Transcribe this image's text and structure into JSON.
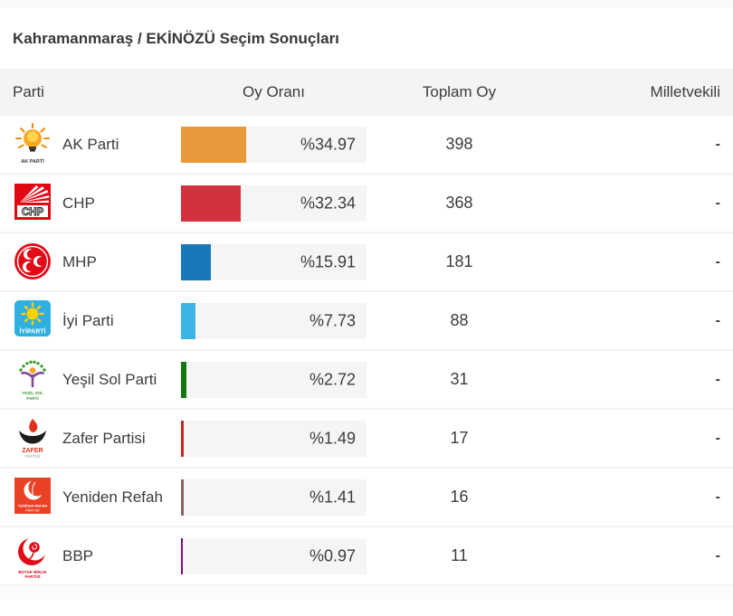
{
  "page": {
    "title": "Kahramanmaraş / EKİNÖZÜ Seçim Sonuçları"
  },
  "table": {
    "columns": {
      "party": "Parti",
      "rate": "Oy Oranı",
      "total": "Toplam Oy",
      "mps": "Milletvekili"
    },
    "rows": [
      {
        "party": "AK Parti",
        "rate": 34.97,
        "rate_label": "%34.97",
        "total": "398",
        "mps": "-",
        "bar_color": "#e8993c",
        "logo_caption": "AK PARTİ",
        "logo_caption2": ""
      },
      {
        "party": "CHP",
        "rate": 32.34,
        "rate_label": "%32.34",
        "total": "368",
        "mps": "-",
        "bar_color": "#d2323e",
        "logo_caption": "CHP",
        "logo_caption2": ""
      },
      {
        "party": "MHP",
        "rate": 15.91,
        "rate_label": "%15.91",
        "total": "181",
        "mps": "-",
        "bar_color": "#1878b8",
        "logo_caption": "",
        "logo_caption2": ""
      },
      {
        "party": "İyi Parti",
        "rate": 7.73,
        "rate_label": "%7.73",
        "total": "88",
        "mps": "-",
        "bar_color": "#3cb5e5",
        "logo_caption": "İYİPARTİ",
        "logo_caption2": ""
      },
      {
        "party": "Yeşil Sol Parti",
        "rate": 2.72,
        "rate_label": "%2.72",
        "total": "31",
        "mps": "-",
        "bar_color": "#107a10",
        "logo_caption": "YEŞİL SOL",
        "logo_caption2": "PARTİ"
      },
      {
        "party": "Zafer Partisi",
        "rate": 1.49,
        "rate_label": "%1.49",
        "total": "17",
        "mps": "-",
        "bar_color": "#c52a1c",
        "logo_caption": "ZAFER",
        "logo_caption2": "PARTİSİ"
      },
      {
        "party": "Yeniden Refah",
        "rate": 1.41,
        "rate_label": "%1.41",
        "total": "16",
        "mps": "-",
        "bar_color": "#8a6167",
        "logo_caption": "YENİDEN REFAH",
        "logo_caption2": "PARTİSİ"
      },
      {
        "party": "BBP",
        "rate": 0.97,
        "rate_label": "%0.97",
        "total": "11",
        "mps": "-",
        "bar_color": "#7b0f7b",
        "logo_caption": "BÜYÜK BİRLİK",
        "logo_caption2": "PARTİSİ"
      }
    ]
  },
  "chart_data": {
    "type": "bar",
    "orientation": "horizontal",
    "title": "Kahramanmaraş / EKİNÖZÜ Seçim Sonuçları",
    "categories": [
      "AK Parti",
      "CHP",
      "MHP",
      "İyi Parti",
      "Yeşil Sol Parti",
      "Zafer Partisi",
      "Yeniden Refah",
      "BBP"
    ],
    "series": [
      {
        "name": "Oy Oranı (%)",
        "values": [
          34.97,
          32.34,
          15.91,
          7.73,
          2.72,
          1.49,
          1.41,
          0.97
        ]
      },
      {
        "name": "Toplam Oy",
        "values": [
          398,
          368,
          181,
          88,
          31,
          17,
          16,
          11
        ]
      },
      {
        "name": "Milletvekili",
        "values": [
          "-",
          "-",
          "-",
          "-",
          "-",
          "-",
          "-",
          "-"
        ]
      }
    ],
    "bar_colors": [
      "#e8993c",
      "#d2323e",
      "#1878b8",
      "#3cb5e5",
      "#107a10",
      "#c52a1c",
      "#8a6167",
      "#7b0f7b"
    ],
    "xlim": [
      0,
      100
    ],
    "value_prefix": "%",
    "grid": false,
    "legend": false
  }
}
